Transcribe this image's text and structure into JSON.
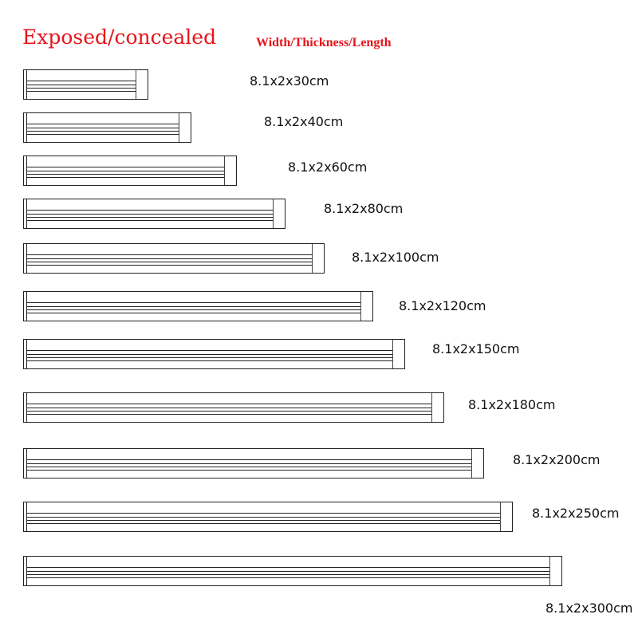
{
  "title": "Exposed/concealed",
  "subtitle": "Width/Thickness/Length",
  "accent_color": "#e8141a",
  "sizes": [
    {
      "label": "8.1x2x30cm",
      "length_cm": 30
    },
    {
      "label": "8.1x2x40cm",
      "length_cm": 40
    },
    {
      "label": "8.1x2x60cm",
      "length_cm": 60
    },
    {
      "label": "8.1x2x80cm",
      "length_cm": 80
    },
    {
      "label": "8.1x2x100cm",
      "length_cm": 100
    },
    {
      "label": "8.1x2x120cm",
      "length_cm": 120
    },
    {
      "label": "8.1x2x150cm",
      "length_cm": 150
    },
    {
      "label": "8.1x2x180cm",
      "length_cm": 180
    },
    {
      "label": "8.1x2x200cm",
      "length_cm": 200
    },
    {
      "label": "8.1x2x250cm",
      "length_cm": 250
    },
    {
      "label": "8.1x2x300cm",
      "length_cm": 300
    }
  ]
}
